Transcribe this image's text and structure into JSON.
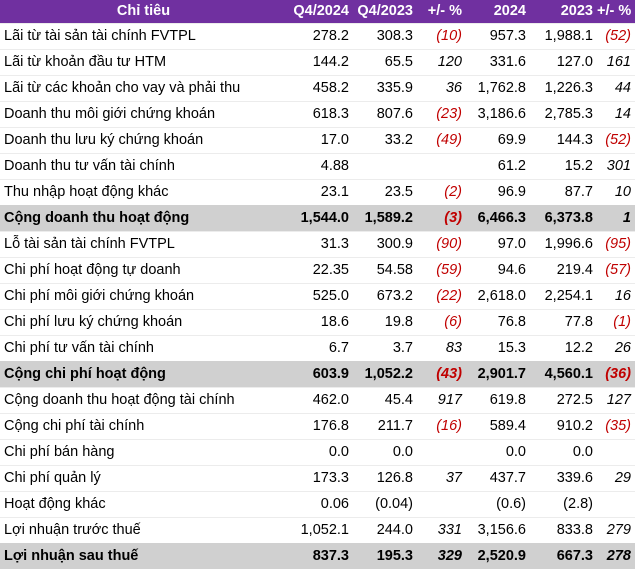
{
  "headers": [
    "Chỉ tiêu",
    "Q4/2024",
    "Q4/2023",
    "+/- %",
    "2024",
    "2023",
    "+/- %"
  ],
  "rows": [
    {
      "label": "Lãi từ tài sản tài chính FVTPL",
      "q4_2024": "278.2",
      "q4_2023": "308.3",
      "q_change": "(10)",
      "y2024": "957.3",
      "y2023": "1,988.1",
      "y_change": "(52)"
    },
    {
      "label": "Lãi từ khoản đầu tư HTM",
      "q4_2024": "144.2",
      "q4_2023": "65.5",
      "q_change": "120",
      "y2024": "331.6",
      "y2023": "127.0",
      "y_change": "161"
    },
    {
      "label": "Lãi từ các khoản cho vay và phải thu",
      "q4_2024": "458.2",
      "q4_2023": "335.9",
      "q_change": "36",
      "y2024": "1,762.8",
      "y2023": "1,226.3",
      "y_change": "44"
    },
    {
      "label": "Doanh thu môi giới chứng khoán",
      "q4_2024": "618.3",
      "q4_2023": "807.6",
      "q_change": "(23)",
      "y2024": "3,186.6",
      "y2023": "2,785.3",
      "y_change": "14"
    },
    {
      "label": "Doanh thu lưu ký chứng khoán",
      "q4_2024": "17.0",
      "q4_2023": "33.2",
      "q_change": "(49)",
      "y2024": "69.9",
      "y2023": "144.3",
      "y_change": "(52)"
    },
    {
      "label": "Doanh thu tư vấn tài chính",
      "q4_2024": "4.88",
      "q4_2023": "",
      "q_change": "",
      "y2024": "61.2",
      "y2023": "15.2",
      "y_change": "301"
    },
    {
      "label": "Thu nhập hoạt động khác",
      "q4_2024": "23.1",
      "q4_2023": "23.5",
      "q_change": "(2)",
      "y2024": "96.9",
      "y2023": "87.7",
      "y_change": "10"
    },
    {
      "label": "Cộng doanh thu hoạt động",
      "q4_2024": "1,544.0",
      "q4_2023": "1,589.2",
      "q_change": "(3)",
      "y2024": "6,466.3",
      "y2023": "6,373.8",
      "y_change": "1",
      "total": true
    },
    {
      "label": "Lỗ tài sản tài chính FVTPL",
      "q4_2024": "31.3",
      "q4_2023": "300.9",
      "q_change": "(90)",
      "y2024": "97.0",
      "y2023": "1,996.6",
      "y_change": "(95)"
    },
    {
      "label": "Chi phí hoạt động tự doanh",
      "q4_2024": "22.35",
      "q4_2023": "54.58",
      "q_change": "(59)",
      "y2024": "94.6",
      "y2023": "219.4",
      "y_change": "(57)"
    },
    {
      "label": "Chi phí môi giới chứng khoán",
      "q4_2024": "525.0",
      "q4_2023": "673.2",
      "q_change": "(22)",
      "y2024": "2,618.0",
      "y2023": "2,254.1",
      "y_change": "16"
    },
    {
      "label": "Chi phí lưu ký chứng khoán",
      "q4_2024": "18.6",
      "q4_2023": "19.8",
      "q_change": "(6)",
      "y2024": "76.8",
      "y2023": "77.8",
      "y_change": "(1)"
    },
    {
      "label": "Chi phí tư vấn tài chính",
      "q4_2024": "6.7",
      "q4_2023": "3.7",
      "q_change": "83",
      "y2024": "15.3",
      "y2023": "12.2",
      "y_change": "26"
    },
    {
      "label": "Cộng chi phí hoạt động",
      "q4_2024": "603.9",
      "q4_2023": "1,052.2",
      "q_change": "(43)",
      "y2024": "2,901.7",
      "y2023": "4,560.1",
      "y_change": "(36)",
      "total": true
    },
    {
      "label": "Cộng doanh thu hoạt động tài chính",
      "q4_2024": "462.0",
      "q4_2023": "45.4",
      "q_change": "917",
      "y2024": "619.8",
      "y2023": "272.5",
      "y_change": "127"
    },
    {
      "label": "Cộng chi phí tài chính",
      "q4_2024": "176.8",
      "q4_2023": "211.7",
      "q_change": "(16)",
      "y2024": "589.4",
      "y2023": "910.2",
      "y_change": "(35)"
    },
    {
      "label": "Chi phí bán hàng",
      "q4_2024": "0.0",
      "q4_2023": "0.0",
      "q_change": "",
      "y2024": "0.0",
      "y2023": "0.0",
      "y_change": ""
    },
    {
      "label": "Chi phí quản lý",
      "q4_2024": "173.3",
      "q4_2023": "126.8",
      "q_change": "37",
      "y2024": "437.7",
      "y2023": "339.6",
      "y_change": "29"
    },
    {
      "label": "Hoạt động khác",
      "q4_2024": "0.06",
      "q4_2023": "(0.04)",
      "q_change": "",
      "y2024": "(0.6)",
      "y2023": "(2.8)",
      "y_change": ""
    },
    {
      "label": "Lợi nhuận trước thuế",
      "q4_2024": "1,052.1",
      "q4_2023": "244.0",
      "q_change": "331",
      "y2024": "3,156.6",
      "y2023": "833.8",
      "y_change": "279"
    },
    {
      "label": "Lợi nhuận sau thuế",
      "q4_2024": "837.3",
      "q4_2023": "195.3",
      "q_change": "329",
      "y2024": "2,520.9",
      "y2023": "667.3",
      "y_change": "278",
      "total": true
    }
  ]
}
